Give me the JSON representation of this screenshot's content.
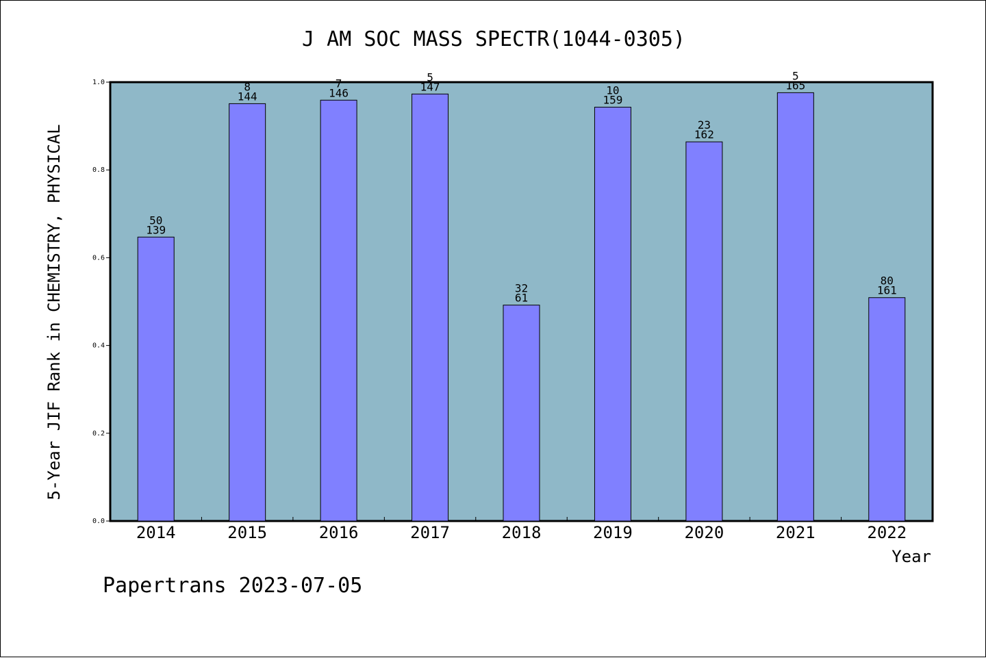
{
  "chart_data": {
    "type": "bar",
    "title": "J AM SOC MASS SPECTR(1044-0305)",
    "xlabel": "Year",
    "ylabel": "5-Year JIF Rank in CHEMISTRY, PHYSICAL",
    "categories": [
      "2014",
      "2015",
      "2016",
      "2017",
      "2018",
      "2019",
      "2020",
      "2021",
      "2022"
    ],
    "values": [
      0.647,
      0.951,
      0.959,
      0.973,
      0.492,
      0.943,
      0.864,
      0.976,
      0.509
    ],
    "rank": [
      "50",
      "8",
      "7",
      "5",
      "32",
      "10",
      "23",
      "5",
      "80"
    ],
    "total": [
      "139",
      "144",
      "146",
      "147",
      "61",
      "159",
      "162",
      "165",
      "161"
    ],
    "ylim": [
      0,
      1.0
    ],
    "yticks": [
      "0.0",
      "0.2",
      "0.4",
      "0.6",
      "0.8",
      "1.0"
    ],
    "grid": false,
    "colors": {
      "plot_background": "#8fb8c8",
      "bar": "#8080ff"
    }
  },
  "footer": "Papertrans 2023-07-05"
}
